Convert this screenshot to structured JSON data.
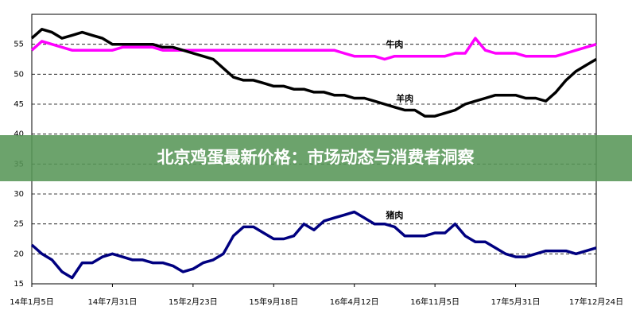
{
  "chart_data": {
    "type": "line",
    "title": "北京鸡蛋最新价格：市场动态与消费者洞察",
    "categories": [
      "14年1月5日",
      null,
      null,
      null,
      null,
      null,
      null,
      null,
      "14年7月31日",
      null,
      null,
      null,
      null,
      null,
      null,
      null,
      "15年2月23日",
      null,
      null,
      null,
      null,
      null,
      null,
      null,
      "15年9月18日",
      null,
      null,
      null,
      null,
      null,
      null,
      null,
      "16年4月12日",
      null,
      null,
      null,
      null,
      null,
      null,
      null,
      "16年11月5日",
      null,
      null,
      null,
      null,
      null,
      null,
      null,
      "17年5月31日",
      null,
      null,
      null,
      null,
      null,
      null,
      null,
      "17年12月24日"
    ],
    "series": [
      {
        "name": "牛肉",
        "color": "#ff00ff",
        "values": [
          54,
          55.5,
          55,
          54.5,
          54,
          54,
          54,
          54,
          54,
          54.5,
          54.5,
          54.5,
          54.5,
          54,
          54,
          54,
          54,
          54,
          54,
          54,
          54,
          54,
          54,
          54,
          54,
          54,
          54,
          54,
          54,
          54,
          54,
          53.5,
          53,
          53,
          53,
          52.5,
          53,
          53,
          53,
          53,
          53,
          53,
          53.5,
          53.5,
          56,
          54,
          53.5,
          53.5,
          53.5,
          53,
          53,
          53,
          53,
          53.5,
          54,
          54.5,
          55
        ]
      },
      {
        "name": "羊肉",
        "color": "#000000",
        "values": [
          56,
          57.5,
          57,
          56,
          56.5,
          57,
          56.5,
          56,
          55,
          55,
          55,
          55,
          55,
          54.5,
          54.5,
          54,
          53.5,
          53,
          52.5,
          51,
          49.5,
          49,
          49,
          48.5,
          48,
          48,
          47.5,
          47.5,
          47,
          47,
          46.5,
          46.5,
          46,
          46,
          45.5,
          45,
          44.5,
          44,
          44,
          43,
          43,
          43.5,
          44,
          45,
          45.5,
          46,
          46.5,
          46.5,
          46.5,
          46,
          46,
          45.5,
          47,
          49,
          50.5,
          51.5,
          52.5
        ]
      },
      {
        "name": "猪肉",
        "color": "#000080",
        "values": [
          21.5,
          20,
          19,
          17,
          16,
          18.5,
          18.5,
          19.5,
          20,
          19.5,
          19,
          19,
          18.5,
          18.5,
          18,
          17,
          17.5,
          18.5,
          19,
          20,
          23,
          24.5,
          24.5,
          23.5,
          22.5,
          22.5,
          23,
          25,
          24,
          25.5,
          26,
          26.5,
          27,
          26,
          25,
          25,
          24.5,
          23,
          23,
          23,
          23.5,
          23.5,
          25,
          23,
          22,
          22,
          21,
          20,
          19.5,
          19.5,
          20,
          20.5,
          20.5,
          20.5,
          20,
          20.5,
          21
        ]
      }
    ],
    "ylim": [
      15,
      60
    ],
    "yticks": [
      15,
      20,
      25,
      30,
      35,
      40,
      45,
      50,
      55
    ],
    "grid": true
  }
}
